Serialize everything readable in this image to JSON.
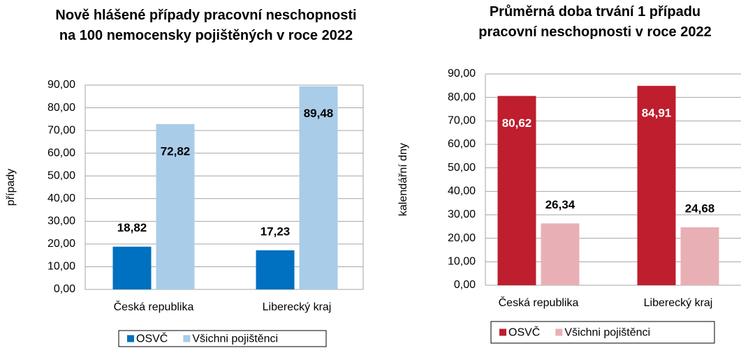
{
  "chart_data": [
    {
      "type": "bar",
      "title": "Nově hlášené případy pracovní neschopnosti na 100 nemocensky pojištěných v roce 2022",
      "y_label": "případy",
      "categories": [
        "Česká republika",
        "Liberecký kraj"
      ],
      "series": [
        {
          "name": "OSVČ",
          "color": "#0070c0",
          "values": [
            18.82,
            17.23
          ],
          "value_labels": [
            "18,82",
            "17,23"
          ]
        },
        {
          "name": "Všichni pojištěnci",
          "color": "#a9cce8",
          "values": [
            72.82,
            89.48
          ],
          "value_labels": [
            "72,82",
            "89,48"
          ]
        }
      ],
      "ylim": [
        0,
        90
      ],
      "yticks": [
        {
          "value": 0,
          "label": "0,00"
        },
        {
          "value": 10,
          "label": "10,00"
        },
        {
          "value": 20,
          "label": "20,00"
        },
        {
          "value": 30,
          "label": "30,00"
        },
        {
          "value": 40,
          "label": "40,00"
        },
        {
          "value": 50,
          "label": "50,00"
        },
        {
          "value": 60,
          "label": "60,00"
        },
        {
          "value": 70,
          "label": "70,00"
        },
        {
          "value": 80,
          "label": "80,00"
        },
        {
          "value": 90,
          "label": "90,00"
        }
      ],
      "grid": true,
      "legend": "bottom"
    },
    {
      "type": "bar",
      "title": "Průměrná doba trvání 1 případu pracovní neschopnosti v roce 2022",
      "y_label": "kalendářní dny",
      "categories": [
        "Česká republika",
        "Liberecký kraj"
      ],
      "series": [
        {
          "name": "OSVČ",
          "color": "#be1e2d",
          "values": [
            80.62,
            84.91
          ],
          "value_labels": [
            "80,62",
            "84,91"
          ]
        },
        {
          "name": "Všichni pojištěnci",
          "color": "#e8b0b5",
          "values": [
            26.34,
            24.68
          ],
          "value_labels": [
            "26,34",
            "24,68"
          ]
        }
      ],
      "ylim": [
        0,
        90
      ],
      "yticks": [
        {
          "value": 0,
          "label": "0,00"
        },
        {
          "value": 10,
          "label": "10,00"
        },
        {
          "value": 20,
          "label": "20,00"
        },
        {
          "value": 30,
          "label": "30,00"
        },
        {
          "value": 40,
          "label": "40,00"
        },
        {
          "value": 50,
          "label": "50,00"
        },
        {
          "value": 60,
          "label": "60,00"
        },
        {
          "value": 70,
          "label": "70,00"
        },
        {
          "value": 80,
          "label": "80,00"
        },
        {
          "value": 90,
          "label": "90,00"
        }
      ],
      "grid": true,
      "legend": "bottom"
    }
  ]
}
